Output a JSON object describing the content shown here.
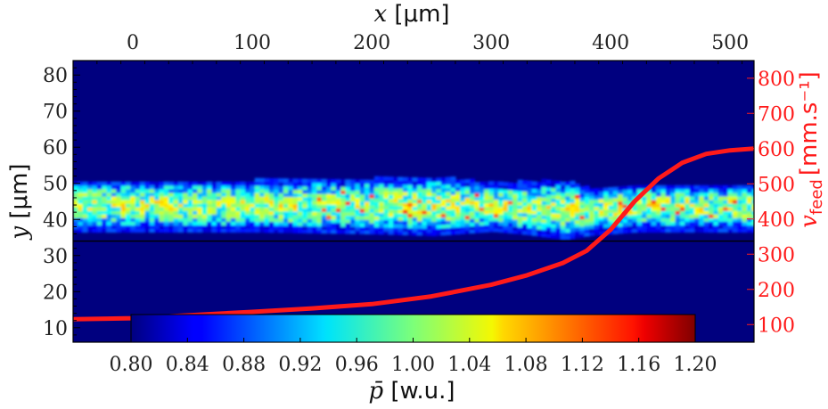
{
  "chart_data": {
    "type": "heatmap",
    "x_axis": {
      "label_var": "x",
      "label_unit": "[μm]",
      "ticks": [
        0,
        100,
        200,
        300,
        400,
        500
      ],
      "range": [
        -50,
        520
      ]
    },
    "y_axis": {
      "label_var": "y",
      "label_unit": "[μm]",
      "ticks": [
        10,
        20,
        30,
        40,
        50,
        60,
        70,
        80
      ],
      "range": [
        6,
        84
      ]
    },
    "secondary_y_axis": {
      "label_var": "v",
      "label_sub": "feed",
      "label_unit": "[mm.s⁻¹]",
      "ticks": [
        100,
        200,
        300,
        400,
        500,
        600,
        700,
        800
      ],
      "range": [
        50,
        850
      ],
      "color": "#ff1a1a"
    },
    "colorbar": {
      "label_var": "p̄",
      "label_unit": "[w.u.]",
      "ticks": [
        "0.80",
        "0.84",
        "0.88",
        "0.92",
        "0.96",
        "1.00",
        "1.04",
        "1.08",
        "1.12",
        "1.16",
        "1.20"
      ],
      "range": [
        0.8,
        1.2
      ],
      "colormap": "jet"
    },
    "background_value": 0.8,
    "substrate_line_y": 34,
    "track": {
      "y_center": [
        [
          -50,
          43.5
        ],
        [
          100,
          43.5
        ],
        [
          250,
          43.5
        ],
        [
          330,
          43
        ],
        [
          380,
          42
        ],
        [
          420,
          43
        ],
        [
          520,
          43
        ]
      ],
      "half_width": [
        [
          -50,
          5.5
        ],
        [
          100,
          5.5
        ],
        [
          200,
          6
        ],
        [
          250,
          6.5
        ],
        [
          300,
          5
        ],
        [
          360,
          6.5
        ],
        [
          380,
          5
        ],
        [
          520,
          5
        ]
      ]
    },
    "series": [
      {
        "type": "line",
        "color": "#ff1a1a",
        "axis": "secondary",
        "x": [
          -50,
          0,
          50,
          100,
          150,
          200,
          250,
          300,
          330,
          360,
          380,
          400,
          420,
          440,
          460,
          480,
          500,
          520
        ],
        "y": [
          115,
          118,
          127,
          136,
          146,
          158,
          180,
          213,
          240,
          275,
          310,
          370,
          450,
          515,
          560,
          585,
          595,
          600
        ]
      }
    ]
  }
}
